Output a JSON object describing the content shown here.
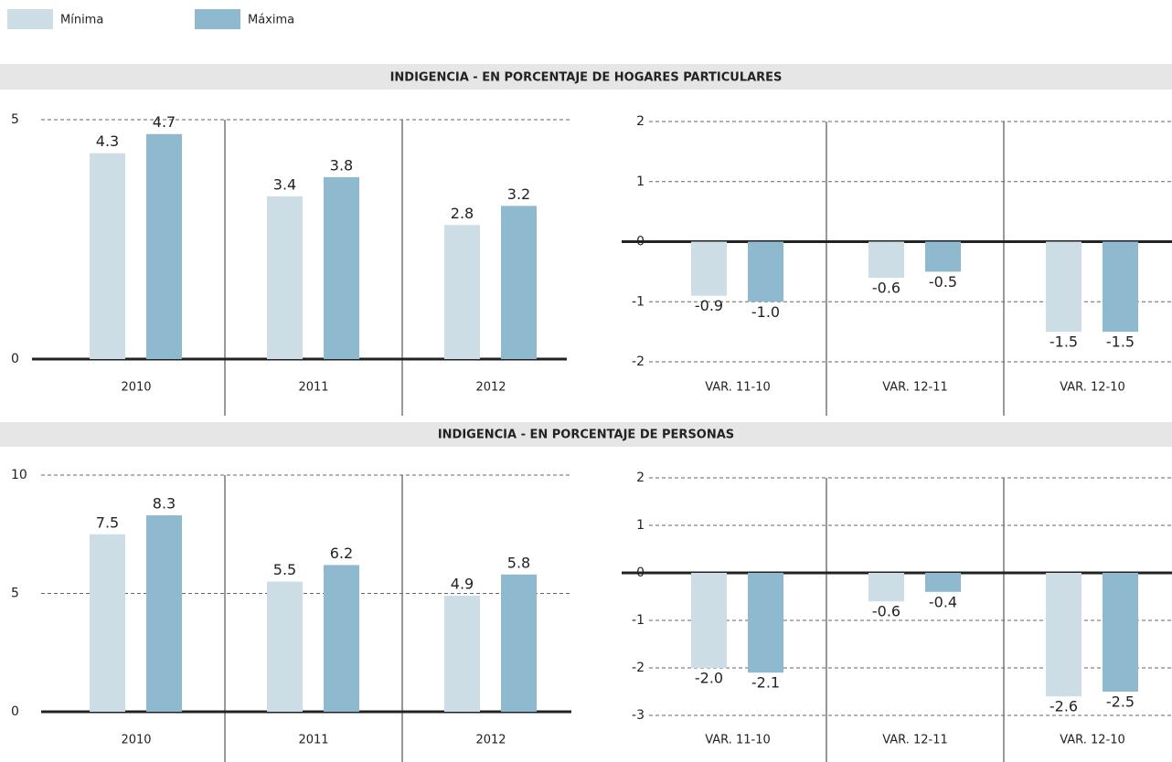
{
  "legend": [
    {
      "name": "Mínima",
      "color": "#cddde5"
    },
    {
      "name": "Máxima",
      "color": "#8fb9cf"
    }
  ],
  "sections": [
    "INDIGENCIA - EN PORCENTAJE DE HOGARES PARTICULARES",
    "INDIGENCIA - EN PORCENTAJE DE PERSONAS"
  ],
  "chart_data": [
    {
      "type": "bar",
      "categories": [
        "2010",
        "2011",
        "2012"
      ],
      "ylim": [
        0,
        5
      ],
      "yticks": [
        0,
        5
      ],
      "series": [
        {
          "values": [
            4.3,
            3.4,
            2.8
          ],
          "value_labels": [
            "4.3",
            "3.4",
            "2.8"
          ]
        },
        {
          "values": [
            4.7,
            3.8,
            3.2
          ],
          "value_labels": [
            "4.7",
            "3.8",
            "3.2"
          ]
        }
      ]
    },
    {
      "type": "bar",
      "categories": [
        "VAR. 11-10",
        "VAR. 12-11",
        "VAR. 12-10"
      ],
      "ylim": [
        -2,
        2
      ],
      "yticks": [
        -2,
        -1,
        0,
        1,
        2
      ],
      "series": [
        {
          "values": [
            -0.9,
            -0.6,
            -1.5
          ],
          "value_labels": [
            "-0.9",
            "-0.6",
            "-1.5"
          ]
        },
        {
          "values": [
            -1,
            -0.5,
            -1.5
          ],
          "value_labels": [
            "-1.0",
            "-0.5",
            "-1.5"
          ]
        }
      ]
    },
    {
      "type": "bar",
      "categories": [
        "2010",
        "2011",
        "2012"
      ],
      "ylim": [
        0,
        10
      ],
      "yticks": [
        0,
        5,
        10
      ],
      "series": [
        {
          "values": [
            7.5,
            5.5,
            4.9
          ],
          "value_labels": [
            "7.5",
            "5.5",
            "4.9"
          ]
        },
        {
          "values": [
            8.3,
            6.2,
            5.8
          ],
          "value_labels": [
            "8.3",
            "6.2",
            "5.8"
          ]
        }
      ]
    },
    {
      "type": "bar",
      "categories": [
        "VAR. 11-10",
        "VAR. 12-11",
        "VAR. 12-10"
      ],
      "ylim": [
        -3,
        2
      ],
      "yticks": [
        -3,
        -2,
        -1,
        0,
        1,
        2
      ],
      "series": [
        {
          "values": [
            -2,
            -0.6,
            -2.6
          ],
          "value_labels": [
            "-2.0",
            "-0.6",
            "-2.6"
          ]
        },
        {
          "values": [
            -2.1,
            -0.4,
            -2.5
          ],
          "value_labels": [
            "-2.1",
            "-0.4",
            "-2.5"
          ]
        }
      ]
    }
  ]
}
